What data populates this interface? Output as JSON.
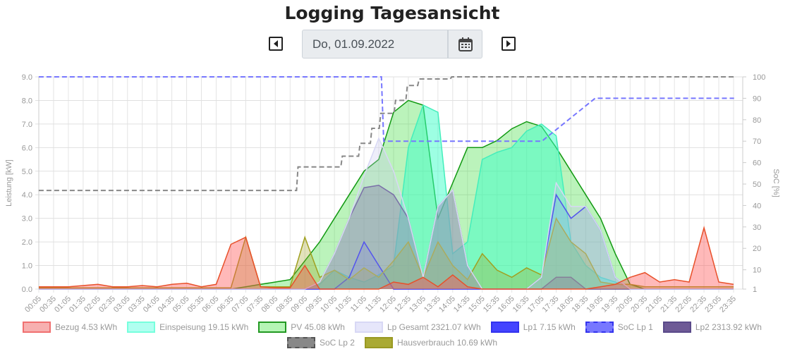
{
  "title": "Logging Tagesansicht",
  "date": "Do, 01.09.2022",
  "icons": {
    "prev": "caret-left-square-icon",
    "next": "caret-right-square-icon",
    "calendar": "calendar-icon"
  },
  "chart_data": {
    "type": "area",
    "ylabel": "Leistung [kW]",
    "y2label": "SoC [%]",
    "ylim": [
      0,
      9
    ],
    "y2lim": [
      1,
      100
    ],
    "yticks": [
      "0.0",
      "1.0",
      "2.0",
      "3.0",
      "4.0",
      "5.0",
      "6.0",
      "7.0",
      "8.0",
      "9.0"
    ],
    "y2ticks": [
      "1",
      "10",
      "20",
      "30",
      "40",
      "50",
      "60",
      "70",
      "80",
      "90",
      "100"
    ],
    "y2tickvalues": [
      1,
      10,
      20,
      30,
      40,
      50,
      60,
      70,
      80,
      90,
      100
    ],
    "xticks": [
      "00:05",
      "00:35",
      "01:05",
      "01:35",
      "02:05",
      "02:35",
      "03:05",
      "03:35",
      "04:05",
      "04:35",
      "05:05",
      "05:35",
      "06:05",
      "06:35",
      "07:05",
      "07:35",
      "08:05",
      "08:35",
      "09:05",
      "09:35",
      "10:05",
      "10:35",
      "11:05",
      "11:35",
      "12:05",
      "12:35",
      "13:05",
      "13:35",
      "14:05",
      "14:35",
      "15:05",
      "15:35",
      "16:05",
      "16:35",
      "17:05",
      "17:35",
      "18:05",
      "18:35",
      "19:05",
      "19:35",
      "20:05",
      "20:35",
      "21:05",
      "21:35",
      "22:05",
      "22:35",
      "23:05",
      "23:35"
    ],
    "series": [
      {
        "name": "Bezug 4.53 kWh",
        "fill": "rgba(255,80,80,0.4)",
        "stroke": "#e8502a",
        "swatch": "#f7b0b0",
        "swatchBorder": "#f07070",
        "values": [
          0.1,
          0.1,
          0.1,
          0.15,
          0.2,
          0.1,
          0.1,
          0.15,
          0.1,
          0.2,
          0.25,
          0.1,
          0.2,
          1.9,
          2.2,
          0.1,
          0.05,
          0.05,
          1.0,
          0,
          0,
          0,
          0,
          0,
          0.3,
          0.2,
          0.5,
          0.1,
          0.6,
          0.1,
          0,
          0,
          0,
          0,
          0,
          0,
          0,
          0,
          0.1,
          0.2,
          0.5,
          0.7,
          0.3,
          0.4,
          0.3,
          2.6,
          0.3,
          0.2
        ]
      },
      {
        "name": "Einspeisung 19.15 kWh",
        "fill": "rgba(60,255,200,0.5)",
        "stroke": "#44eebb",
        "swatch": "#b0fff0",
        "swatchBorder": "#77ffdd",
        "values": [
          0,
          0,
          0,
          0,
          0,
          0,
          0,
          0,
          0,
          0,
          0,
          0,
          0,
          0,
          0,
          0,
          0,
          0,
          0,
          0.2,
          0.8,
          0.5,
          0.3,
          0.6,
          1.0,
          6.0,
          7.8,
          7.5,
          1.5,
          2.0,
          5.5,
          5.8,
          6.0,
          6.7,
          7.0,
          6.5,
          2.0,
          1.0,
          0.5,
          0.3,
          0,
          0,
          0,
          0,
          0,
          0,
          0,
          0
        ]
      },
      {
        "name": "PV 45.08 kWh",
        "fill": "rgba(60,220,60,0.35)",
        "stroke": "#119911",
        "swatch": "#b5f5b5",
        "swatchBorder": "#229922",
        "values": [
          0,
          0,
          0,
          0,
          0,
          0,
          0,
          0,
          0,
          0,
          0,
          0,
          0,
          0,
          0.1,
          0.2,
          0.3,
          0.4,
          1.2,
          2.0,
          3.0,
          4.0,
          5.0,
          5.5,
          7.5,
          8.0,
          7.8,
          3.0,
          4.5,
          6.0,
          6.0,
          6.3,
          6.8,
          7.1,
          6.9,
          6.0,
          5.0,
          4.0,
          3.0,
          1.5,
          0.2,
          0,
          0,
          0,
          0,
          0,
          0,
          0
        ]
      },
      {
        "name": "Lp Gesamt 2321.07 kWh",
        "fill": "rgba(200,200,240,0.3)",
        "stroke": "#d8d8f5",
        "swatch": "#e6e6fa",
        "swatchBorder": "#d8d8f5",
        "values": [
          0,
          0,
          0,
          0,
          0,
          0,
          0,
          0,
          0,
          0,
          0,
          0,
          0,
          0,
          0,
          0,
          0,
          0,
          0,
          0.3,
          1.5,
          3.0,
          4.8,
          6.4,
          5.0,
          3.0,
          0.5,
          3.5,
          4.2,
          1.0,
          0,
          0,
          0,
          0,
          0.5,
          4.5,
          3.5,
          3.5,
          2.5,
          0.5,
          0,
          0,
          0,
          0,
          0,
          0,
          0,
          0
        ]
      },
      {
        "name": "Lp1 7.15 kWh",
        "fill": "rgba(60,60,255,0.15)",
        "stroke": "#2222ee",
        "swatch": "#4444ff",
        "swatchBorder": "#3333ee",
        "values": [
          0,
          0,
          0,
          0,
          0,
          0,
          0,
          0,
          0,
          0,
          0,
          0,
          0,
          0,
          0,
          0,
          0,
          0,
          0,
          0,
          0,
          0.5,
          2.0,
          1.0,
          0,
          0,
          0,
          0,
          0,
          0,
          0,
          0,
          0,
          0,
          0.5,
          4.0,
          3.0,
          3.5,
          2.5,
          0.5,
          0,
          0,
          0,
          0,
          0,
          0,
          0,
          0
        ]
      },
      {
        "name": "SoC Lp 1",
        "dashed": true,
        "axis": "y2",
        "stroke": "#7777ff",
        "swatch": "#7777ff",
        "swatchBorder": "#3333ee",
        "points": [
          [
            0.08,
            100
          ],
          [
            11.67,
            100
          ],
          [
            11.75,
            70
          ],
          [
            17.1,
            70
          ],
          [
            18.9,
            90
          ],
          [
            23.6,
            90
          ]
        ]
      },
      {
        "name": "Lp2 2313.92 kWh",
        "fill": "rgba(90,70,130,0.35)",
        "stroke": "#5a4a8a",
        "swatch": "#6e5a96",
        "swatchBorder": "#5a4a8a",
        "values": [
          0,
          0,
          0,
          0,
          0,
          0,
          0,
          0,
          0,
          0,
          0,
          0,
          0,
          0,
          0,
          0,
          0,
          0,
          0,
          0.3,
          1.5,
          3.0,
          4.3,
          4.4,
          4.0,
          3.0,
          0.5,
          3.5,
          4.2,
          1.0,
          0,
          0,
          0,
          0,
          0,
          0.5,
          0.5,
          0,
          0,
          0,
          0,
          0,
          0,
          0,
          0,
          0,
          0,
          0
        ]
      },
      {
        "name": "SoC Lp 2",
        "dashed": true,
        "axis": "y2",
        "stroke": "#888888",
        "swatch": "#888888",
        "swatchBorder": "#555555",
        "points": [
          [
            0.08,
            47
          ],
          [
            8.8,
            47
          ],
          [
            8.85,
            58
          ],
          [
            10.3,
            58
          ],
          [
            10.35,
            63
          ],
          [
            10.9,
            63
          ],
          [
            10.95,
            69
          ],
          [
            11.3,
            69
          ],
          [
            11.35,
            76
          ],
          [
            11.6,
            76
          ],
          [
            11.65,
            83
          ],
          [
            12.1,
            83
          ],
          [
            12.15,
            89
          ],
          [
            12.5,
            89
          ],
          [
            12.55,
            96
          ],
          [
            12.9,
            96
          ],
          [
            12.95,
            99
          ],
          [
            14.0,
            99
          ],
          [
            14.05,
            100
          ],
          [
            23.6,
            100
          ]
        ]
      },
      {
        "name": "Hausverbrauch 10.69 kWh",
        "fill": "rgba(160,160,30,0.3)",
        "stroke": "#a0a020",
        "swatch": "#aaaa33",
        "swatchBorder": "#999922",
        "values": [
          0.05,
          0.05,
          0.05,
          0.05,
          0.05,
          0.05,
          0.05,
          0.05,
          0.05,
          0.05,
          0.05,
          0.05,
          0.05,
          0.05,
          2.2,
          0.1,
          0.1,
          0.1,
          2.2,
          0.5,
          0.8,
          0.4,
          0.9,
          0.5,
          1.2,
          2.0,
          0.5,
          2.0,
          1.0,
          0.4,
          1.5,
          0.8,
          0.5,
          0.9,
          0.6,
          3.0,
          2.0,
          1.5,
          0.3,
          0.2,
          0.2,
          0.1,
          0.1,
          0.1,
          0.1,
          0.1,
          0.1,
          0.1
        ]
      }
    ]
  }
}
